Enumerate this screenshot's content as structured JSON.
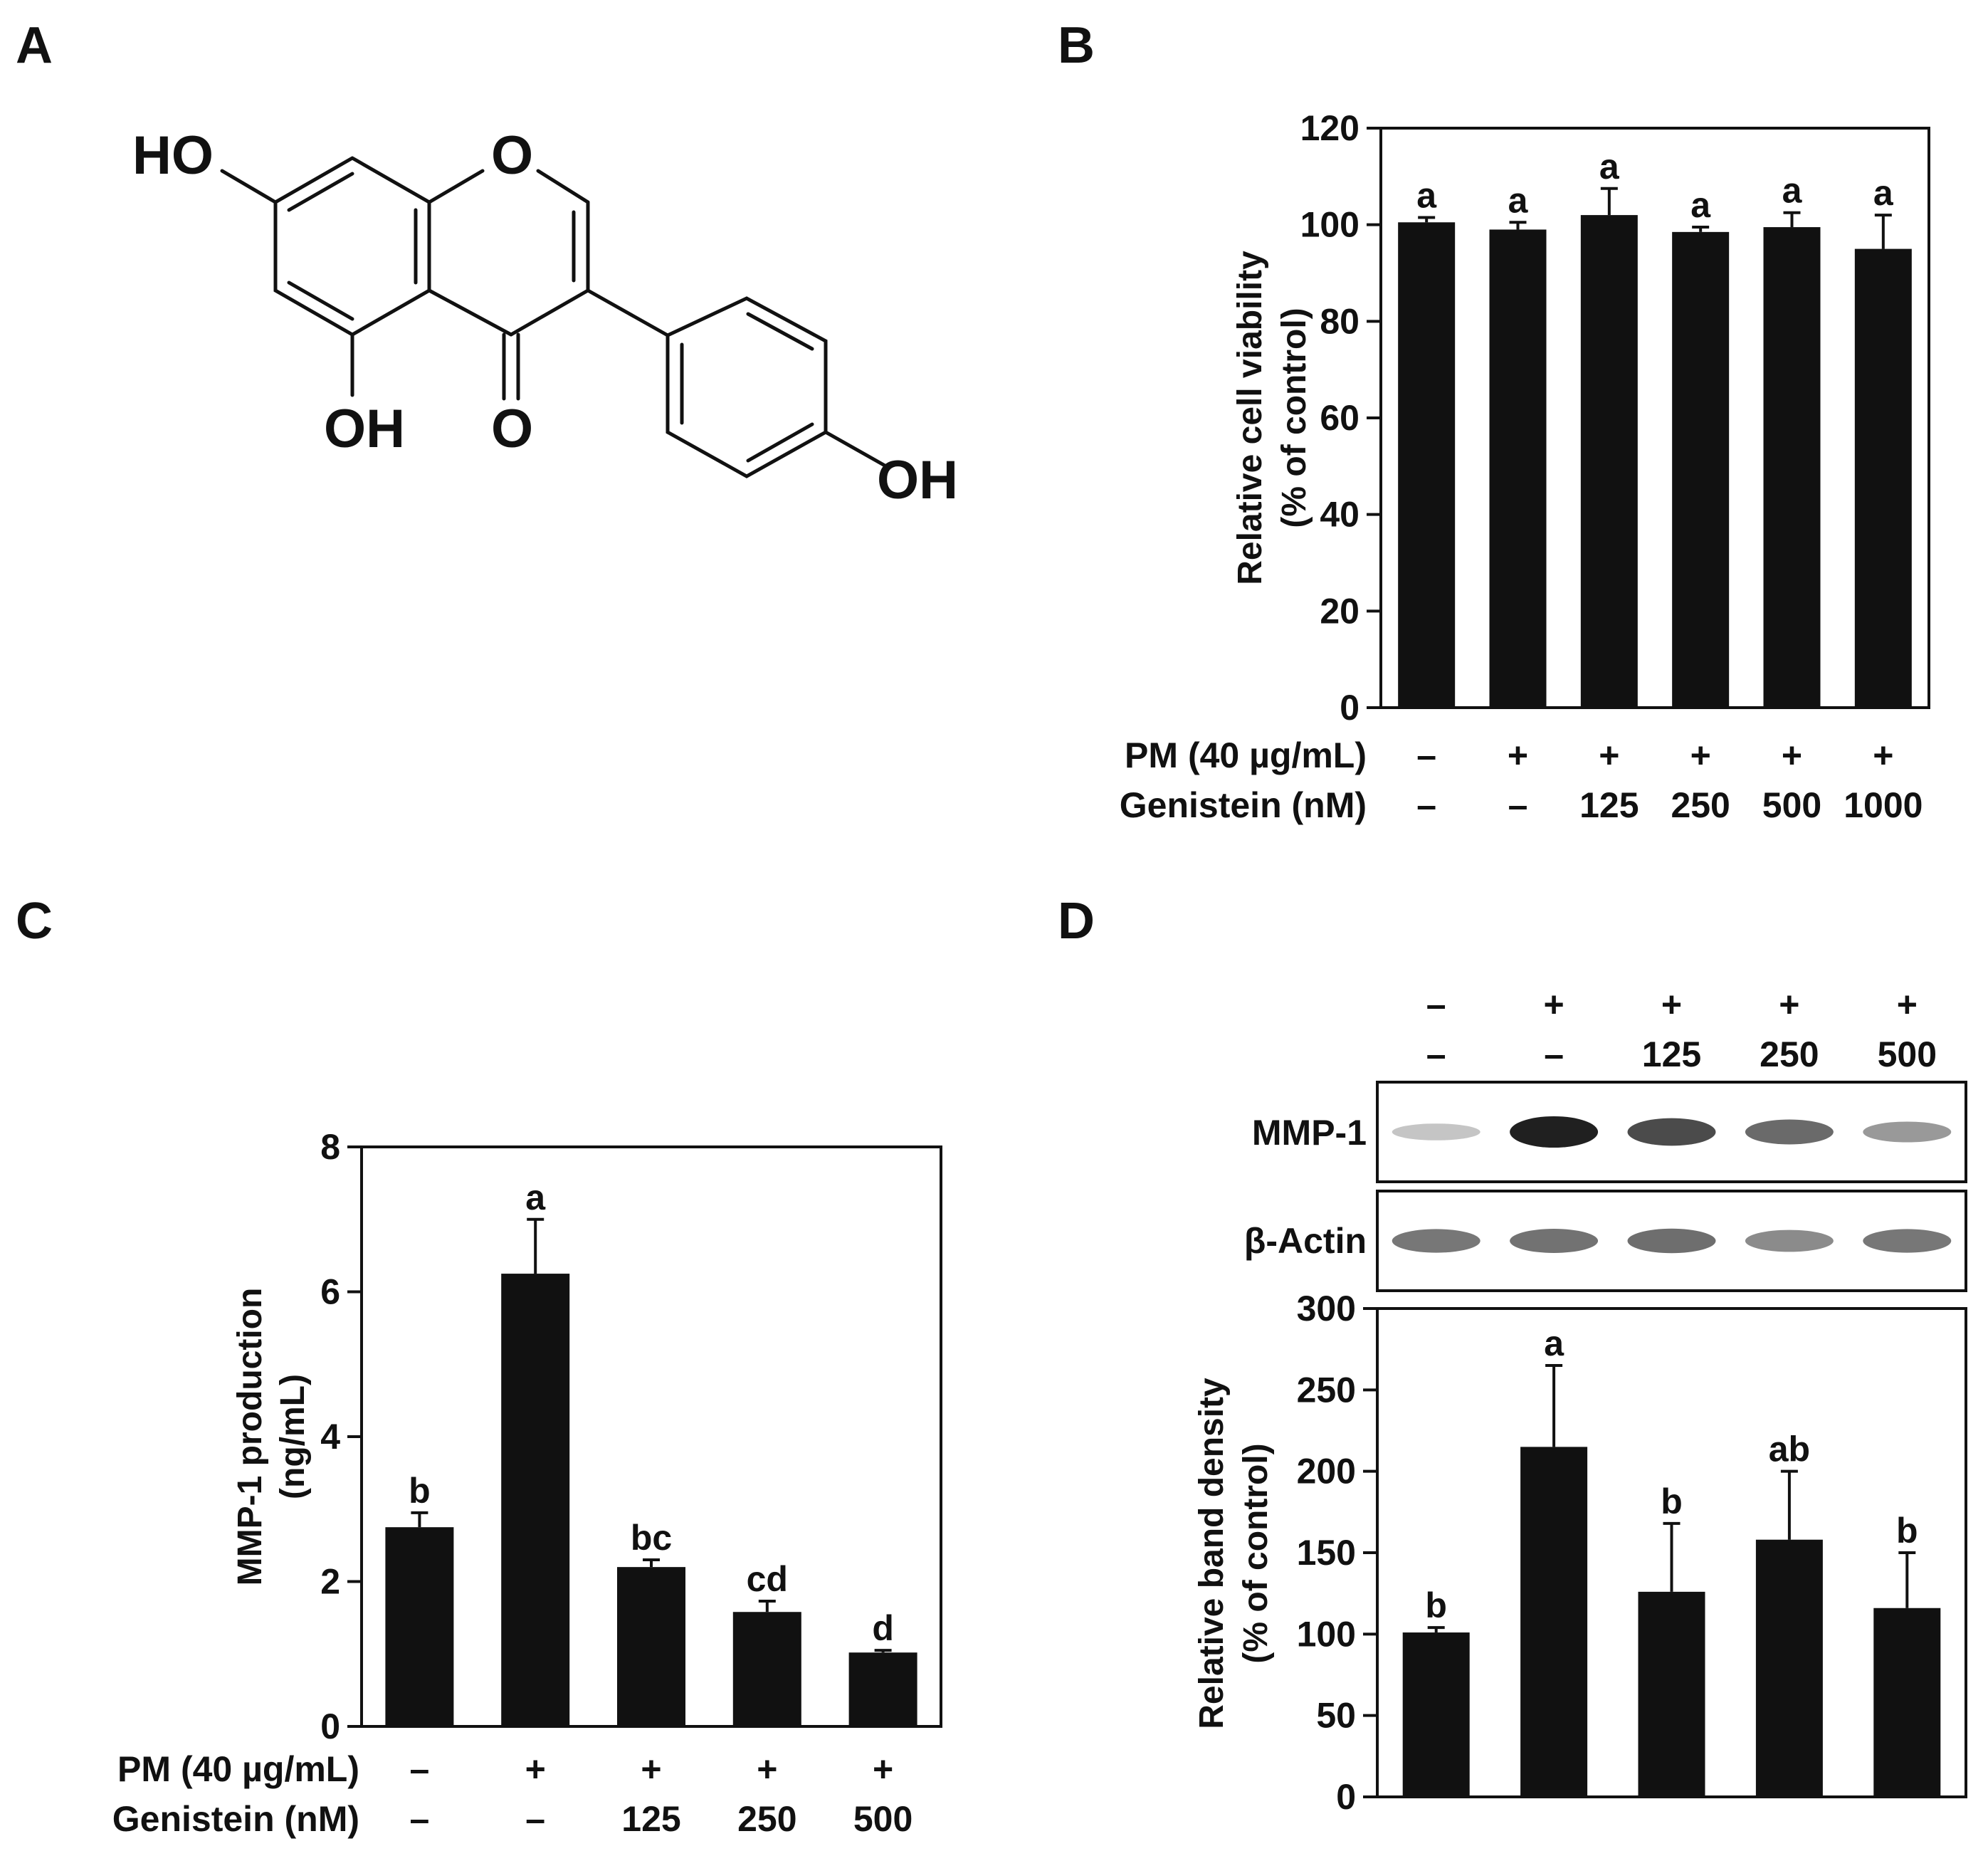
{
  "panels": {
    "A": {
      "letter": "A"
    },
    "B": {
      "letter": "B"
    },
    "C": {
      "letter": "C"
    },
    "D": {
      "letter": "D"
    }
  },
  "structure": {
    "atoms": [
      "HO",
      "O",
      "OH",
      "O",
      "OH"
    ]
  },
  "conditions": {
    "pm_label": "PM (40 µg/mL)",
    "genistein_label": "Genistein (nM)"
  },
  "blot": {
    "pm": [
      "–",
      "+",
      "+",
      "+",
      "+"
    ],
    "genistein": [
      "–",
      "–",
      "125",
      "250",
      "500"
    ],
    "rows": [
      {
        "label": "MMP-1",
        "intensity": [
          0.15,
          1.0,
          0.78,
          0.62,
          0.38
        ]
      },
      {
        "label": "β-Actin",
        "intensity": [
          0.55,
          0.58,
          0.6,
          0.45,
          0.55
        ]
      }
    ]
  },
  "colors": {
    "bar": "#111111",
    "axis": "#111111",
    "background": "#ffffff"
  },
  "chart_data": [
    {
      "panel": "B",
      "type": "bar",
      "ylabel": [
        "Relative cell viability",
        "(% of control)"
      ],
      "ylim": [
        0,
        120
      ],
      "yticks": [
        0,
        20,
        40,
        60,
        80,
        100,
        120
      ],
      "ytick_labels": [
        "0",
        "20",
        "40",
        "60",
        "80",
        "100",
        "120"
      ],
      "pm": [
        "–",
        "+",
        "+",
        "+",
        "+",
        "+"
      ],
      "genistein": [
        "–",
        "–",
        "125",
        "250",
        "500",
        "1000"
      ],
      "values": [
        100.5,
        99,
        102,
        98.5,
        99.5,
        95
      ],
      "errors": [
        1,
        1.5,
        5.5,
        1,
        3,
        7
      ],
      "labels": [
        "a",
        "a",
        "a",
        "a",
        "a",
        "a"
      ],
      "grid": false
    },
    {
      "panel": "C",
      "type": "bar",
      "ylabel": [
        "MMP-1 production",
        "(ng/mL)"
      ],
      "ylim": [
        0,
        8
      ],
      "yticks": [
        0,
        2,
        4,
        6,
        8
      ],
      "ytick_labels": [
        "0",
        "2",
        "4",
        "6",
        "8"
      ],
      "pm": [
        "–",
        "+",
        "+",
        "+",
        "+"
      ],
      "genistein": [
        "–",
        "–",
        "125",
        "250",
        "500"
      ],
      "values": [
        2.75,
        6.25,
        2.2,
        1.58,
        1.02
      ],
      "errors": [
        0.2,
        0.75,
        0.1,
        0.15,
        0.03
      ],
      "labels": [
        "b",
        "a",
        "bc",
        "cd",
        "d"
      ],
      "grid": false
    },
    {
      "panel": "D",
      "type": "bar",
      "ylabel": [
        "Relative band density",
        "(% of control)"
      ],
      "ylim": [
        0,
        300
      ],
      "yticks": [
        0,
        50,
        100,
        150,
        200,
        250,
        300
      ],
      "ytick_labels": [
        "0",
        "50",
        "100",
        "150",
        "200",
        "250",
        "300"
      ],
      "values": [
        101,
        215,
        126,
        158,
        116
      ],
      "errors": [
        3,
        50,
        42,
        42,
        34
      ],
      "labels": [
        "b",
        "a",
        "b",
        "ab",
        "b"
      ],
      "grid": false
    }
  ]
}
